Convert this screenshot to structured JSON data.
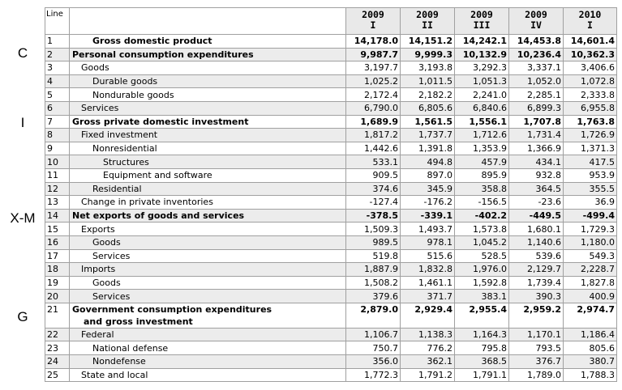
{
  "side_labels": {
    "c": "C",
    "i": "I",
    "xm": "X-M",
    "g": "G"
  },
  "table": {
    "line_header": "Line",
    "columns": [
      {
        "year": "2009",
        "quarter": "I"
      },
      {
        "year": "2009",
        "quarter": "II"
      },
      {
        "year": "2009",
        "quarter": "III"
      },
      {
        "year": "2009",
        "quarter": "IV"
      },
      {
        "year": "2010",
        "quarter": "I"
      }
    ],
    "rows": [
      {
        "line": "1",
        "label": "Gross domestic product",
        "values": [
          "14,178.0",
          "14,151.2",
          "14,242.1",
          "14,453.8",
          "14,601.4"
        ]
      },
      {
        "line": "2",
        "label": "Personal consumption expenditures",
        "values": [
          "9,987.7",
          "9,999.3",
          "10,132.9",
          "10,236.4",
          "10,362.3"
        ]
      },
      {
        "line": "3",
        "label": "Goods",
        "values": [
          "3,197.7",
          "3,193.8",
          "3,292.3",
          "3,337.1",
          "3,406.6"
        ]
      },
      {
        "line": "4",
        "label": "Durable goods",
        "values": [
          "1,025.2",
          "1,011.5",
          "1,051.3",
          "1,052.0",
          "1,072.8"
        ]
      },
      {
        "line": "5",
        "label": "Nondurable goods",
        "values": [
          "2,172.4",
          "2,182.2",
          "2,241.0",
          "2,285.1",
          "2,333.8"
        ]
      },
      {
        "line": "6",
        "label": "Services",
        "values": [
          "6,790.0",
          "6,805.6",
          "6,840.6",
          "6,899.3",
          "6,955.8"
        ]
      },
      {
        "line": "7",
        "label": "Gross private domestic investment",
        "values": [
          "1,689.9",
          "1,561.5",
          "1,556.1",
          "1,707.8",
          "1,763.8"
        ]
      },
      {
        "line": "8",
        "label": "Fixed investment",
        "values": [
          "1,817.2",
          "1,737.7",
          "1,712.6",
          "1,731.4",
          "1,726.9"
        ]
      },
      {
        "line": "9",
        "label": "Nonresidential",
        "values": [
          "1,442.6",
          "1,391.8",
          "1,353.9",
          "1,366.9",
          "1,371.3"
        ]
      },
      {
        "line": "10",
        "label": "Structures",
        "values": [
          "533.1",
          "494.8",
          "457.9",
          "434.1",
          "417.5"
        ]
      },
      {
        "line": "11",
        "label": "Equipment and software",
        "values": [
          "909.5",
          "897.0",
          "895.9",
          "932.8",
          "953.9"
        ]
      },
      {
        "line": "12",
        "label": "Residential",
        "values": [
          "374.6",
          "345.9",
          "358.8",
          "364.5",
          "355.5"
        ]
      },
      {
        "line": "13",
        "label": "Change in private inventories",
        "values": [
          "-127.4",
          "-176.2",
          "-156.5",
          "-23.6",
          "36.9"
        ]
      },
      {
        "line": "14",
        "label": "Net exports of goods and services",
        "values": [
          "-378.5",
          "-339.1",
          "-402.2",
          "-449.5",
          "-499.4"
        ]
      },
      {
        "line": "15",
        "label": "Exports",
        "values": [
          "1,509.3",
          "1,493.7",
          "1,573.8",
          "1,680.1",
          "1,729.3"
        ]
      },
      {
        "line": "16",
        "label": "Goods",
        "values": [
          "989.5",
          "978.1",
          "1,045.2",
          "1,140.6",
          "1,180.0"
        ]
      },
      {
        "line": "17",
        "label": "Services",
        "values": [
          "519.8",
          "515.6",
          "528.5",
          "539.6",
          "549.3"
        ]
      },
      {
        "line": "18",
        "label": "Imports",
        "values": [
          "1,887.9",
          "1,832.8",
          "1,976.0",
          "2,129.7",
          "2,228.7"
        ]
      },
      {
        "line": "19",
        "label": "Goods",
        "values": [
          "1,508.2",
          "1,461.1",
          "1,592.8",
          "1,739.4",
          "1,827.8"
        ]
      },
      {
        "line": "20",
        "label": "Services",
        "values": [
          "379.6",
          "371.7",
          "383.1",
          "390.3",
          "400.9"
        ]
      },
      {
        "line": "21",
        "label": "Government consumption expenditures",
        "label2": "and gross investment",
        "values": [
          "2,879.0",
          "2,929.4",
          "2,955.4",
          "2,959.2",
          "2,974.7"
        ]
      },
      {
        "line": "22",
        "label": "Federal",
        "values": [
          "1,106.7",
          "1,138.3",
          "1,164.3",
          "1,170.1",
          "1,186.4"
        ]
      },
      {
        "line": "23",
        "label": "National defense",
        "values": [
          "750.7",
          "776.2",
          "795.8",
          "793.5",
          "805.6"
        ]
      },
      {
        "line": "24",
        "label": "Nondefense",
        "values": [
          "356.0",
          "362.1",
          "368.5",
          "376.7",
          "380.7"
        ]
      },
      {
        "line": "25",
        "label": "State and local",
        "values": [
          "1,772.3",
          "1,791.2",
          "1,791.1",
          "1,789.0",
          "1,788.3"
        ]
      }
    ]
  }
}
